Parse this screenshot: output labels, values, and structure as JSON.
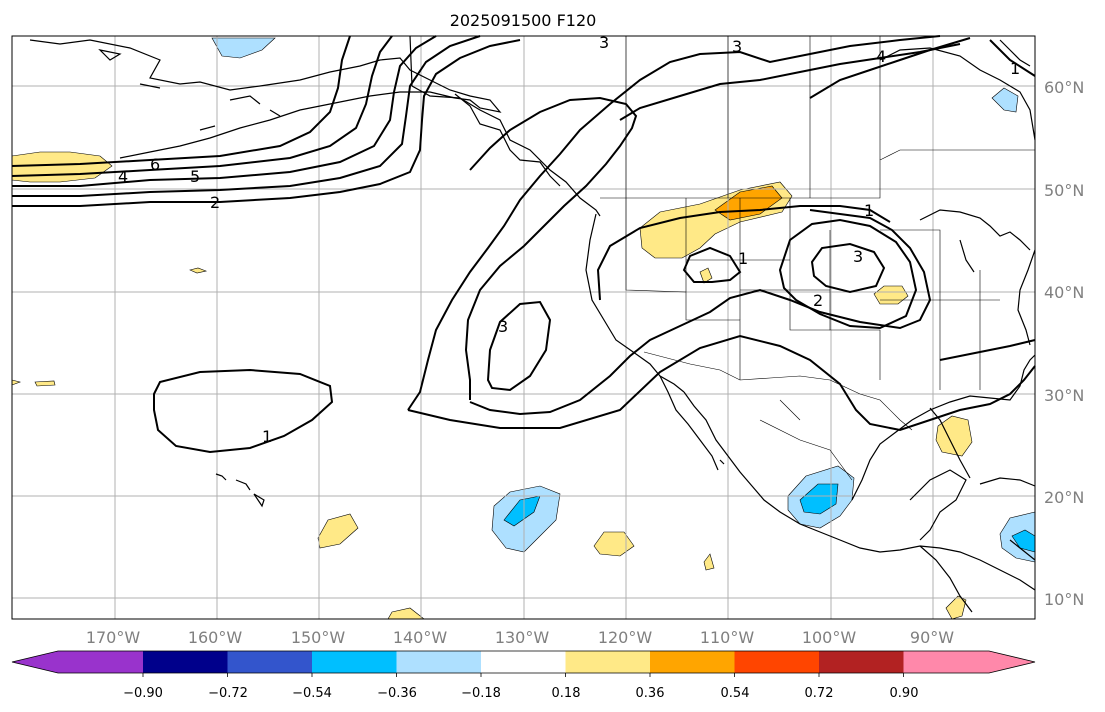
{
  "title": "2025091500 F120",
  "lat_labels": [
    "60°N",
    "50°N",
    "40°N",
    "30°N",
    "20°N",
    "10°N"
  ],
  "lon_labels": [
    "170°W",
    "160°W",
    "150°W",
    "140°W",
    "130°W",
    "120°W",
    "110°W",
    "100°W",
    "90°W"
  ],
  "contour_labels": [
    "1",
    "1",
    "1",
    "1",
    "2",
    "2",
    "3",
    "3",
    "3",
    "3",
    "4",
    "4",
    "5",
    "6"
  ],
  "colorbar": {
    "tick_labels": [
      "−0.90",
      "−0.72",
      "−0.54",
      "−0.36",
      "−0.18",
      "0.18",
      "0.36",
      "0.54",
      "0.72",
      "0.90"
    ],
    "colors": [
      "#9933cc",
      "#00008b",
      "#3355cc",
      "#00bfff",
      "#aee0ff",
      "#ffffff",
      "#ffe987",
      "#ffa500",
      "#ff4500",
      "#b22222",
      "#ff88aa"
    ]
  },
  "colors": {
    "grid": "#b0b0b0",
    "coast": "#000000",
    "contour": "#000000",
    "label": "#808080"
  }
}
